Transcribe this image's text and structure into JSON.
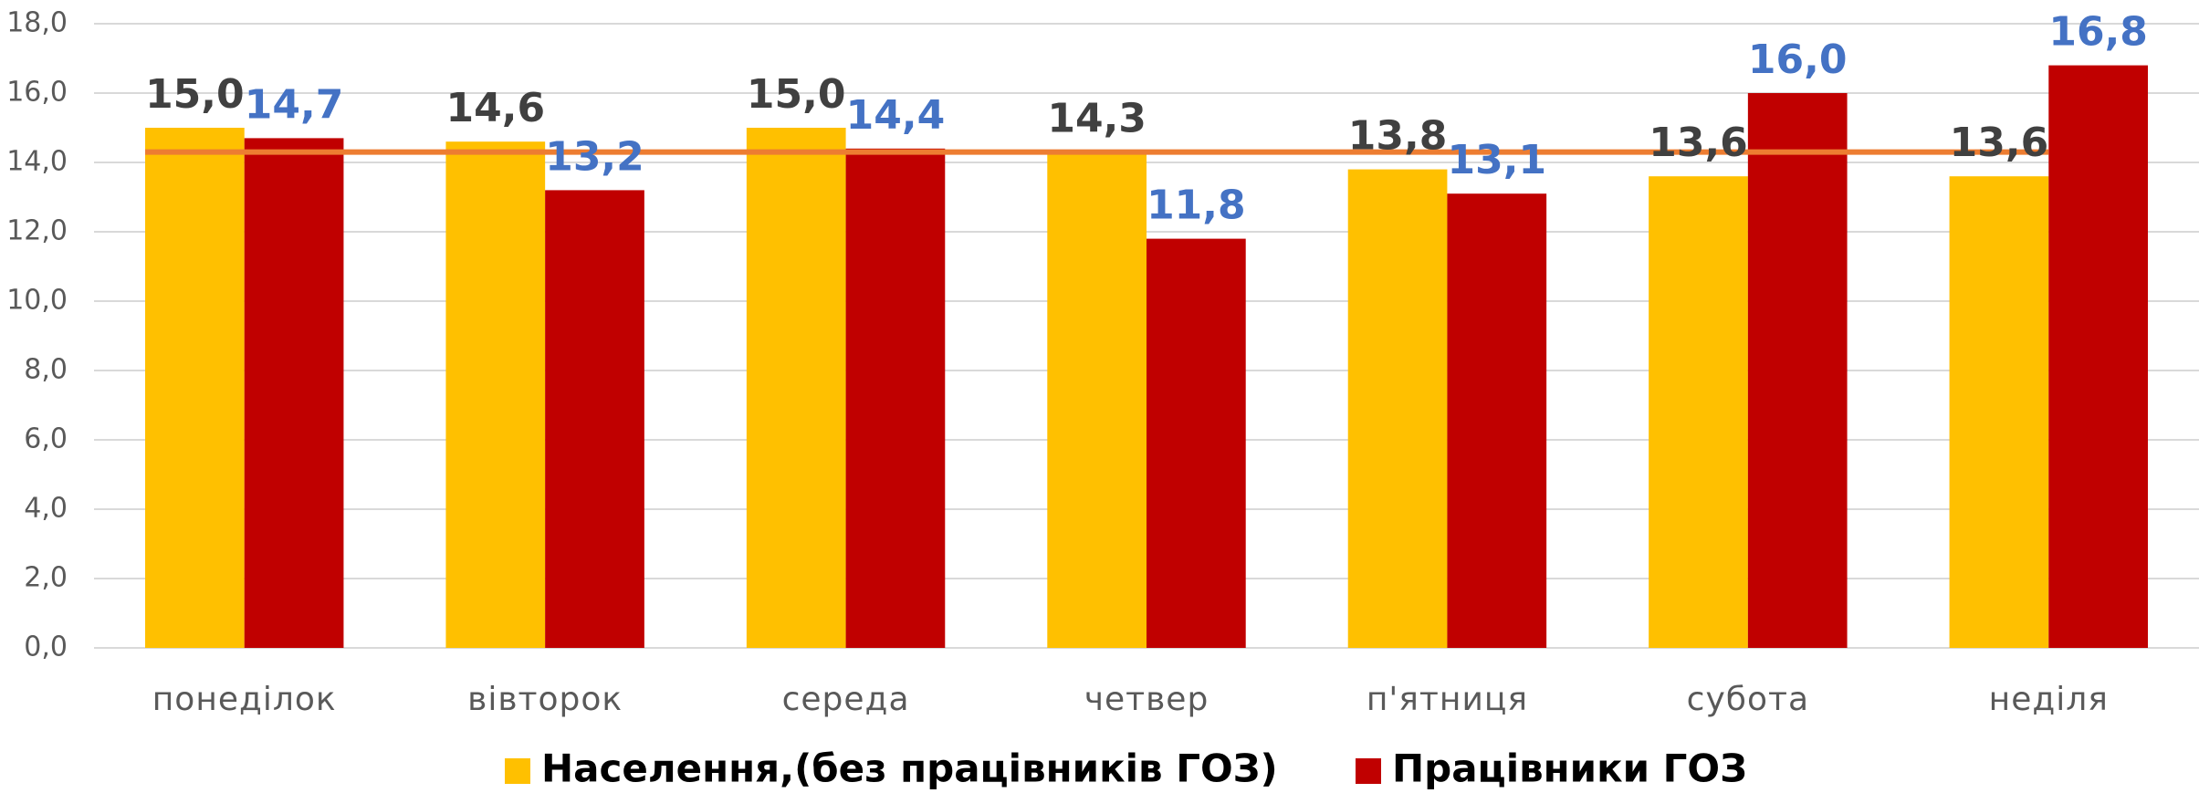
{
  "chart_data": {
    "type": "bar",
    "categories": [
      "понеділок",
      "вівторок",
      "середа",
      "четвер",
      "п'ятниця",
      "субота",
      "неділя"
    ],
    "series": [
      {
        "name": "Населення,(без працівників ГОЗ)",
        "color": "#ffc000",
        "label_color": "#404040",
        "values": [
          15.0,
          14.6,
          15.0,
          14.3,
          13.8,
          13.6,
          13.6
        ],
        "value_labels": [
          "15,0",
          "14,6",
          "15,0",
          "14,3",
          "13,8",
          "13,6",
          "13,6"
        ]
      },
      {
        "name": "Працівники ГОЗ",
        "color": "#c00000",
        "label_color": "#4472c4",
        "values": [
          14.7,
          13.2,
          14.4,
          11.8,
          13.1,
          16.0,
          16.8
        ],
        "value_labels": [
          "14,7",
          "13,2",
          "14,4",
          "11,8",
          "13,1",
          "16,0",
          "16,8"
        ]
      }
    ],
    "reference_line": {
      "value": 14.3,
      "color": "#ed7d31"
    },
    "ylim": [
      0,
      18
    ],
    "yticks": [
      {
        "value": 0,
        "label": "0,0"
      },
      {
        "value": 2,
        "label": "2,0"
      },
      {
        "value": 4,
        "label": "4,0"
      },
      {
        "value": 6,
        "label": "6,0"
      },
      {
        "value": 8,
        "label": "8,0"
      },
      {
        "value": 10,
        "label": "10,0"
      },
      {
        "value": 12,
        "label": "12,0"
      },
      {
        "value": 14,
        "label": "14,0"
      },
      {
        "value": 16,
        "label": "16,0"
      },
      {
        "value": 18,
        "label": "18,0"
      }
    ],
    "grid": true,
    "legend": "bottom"
  }
}
